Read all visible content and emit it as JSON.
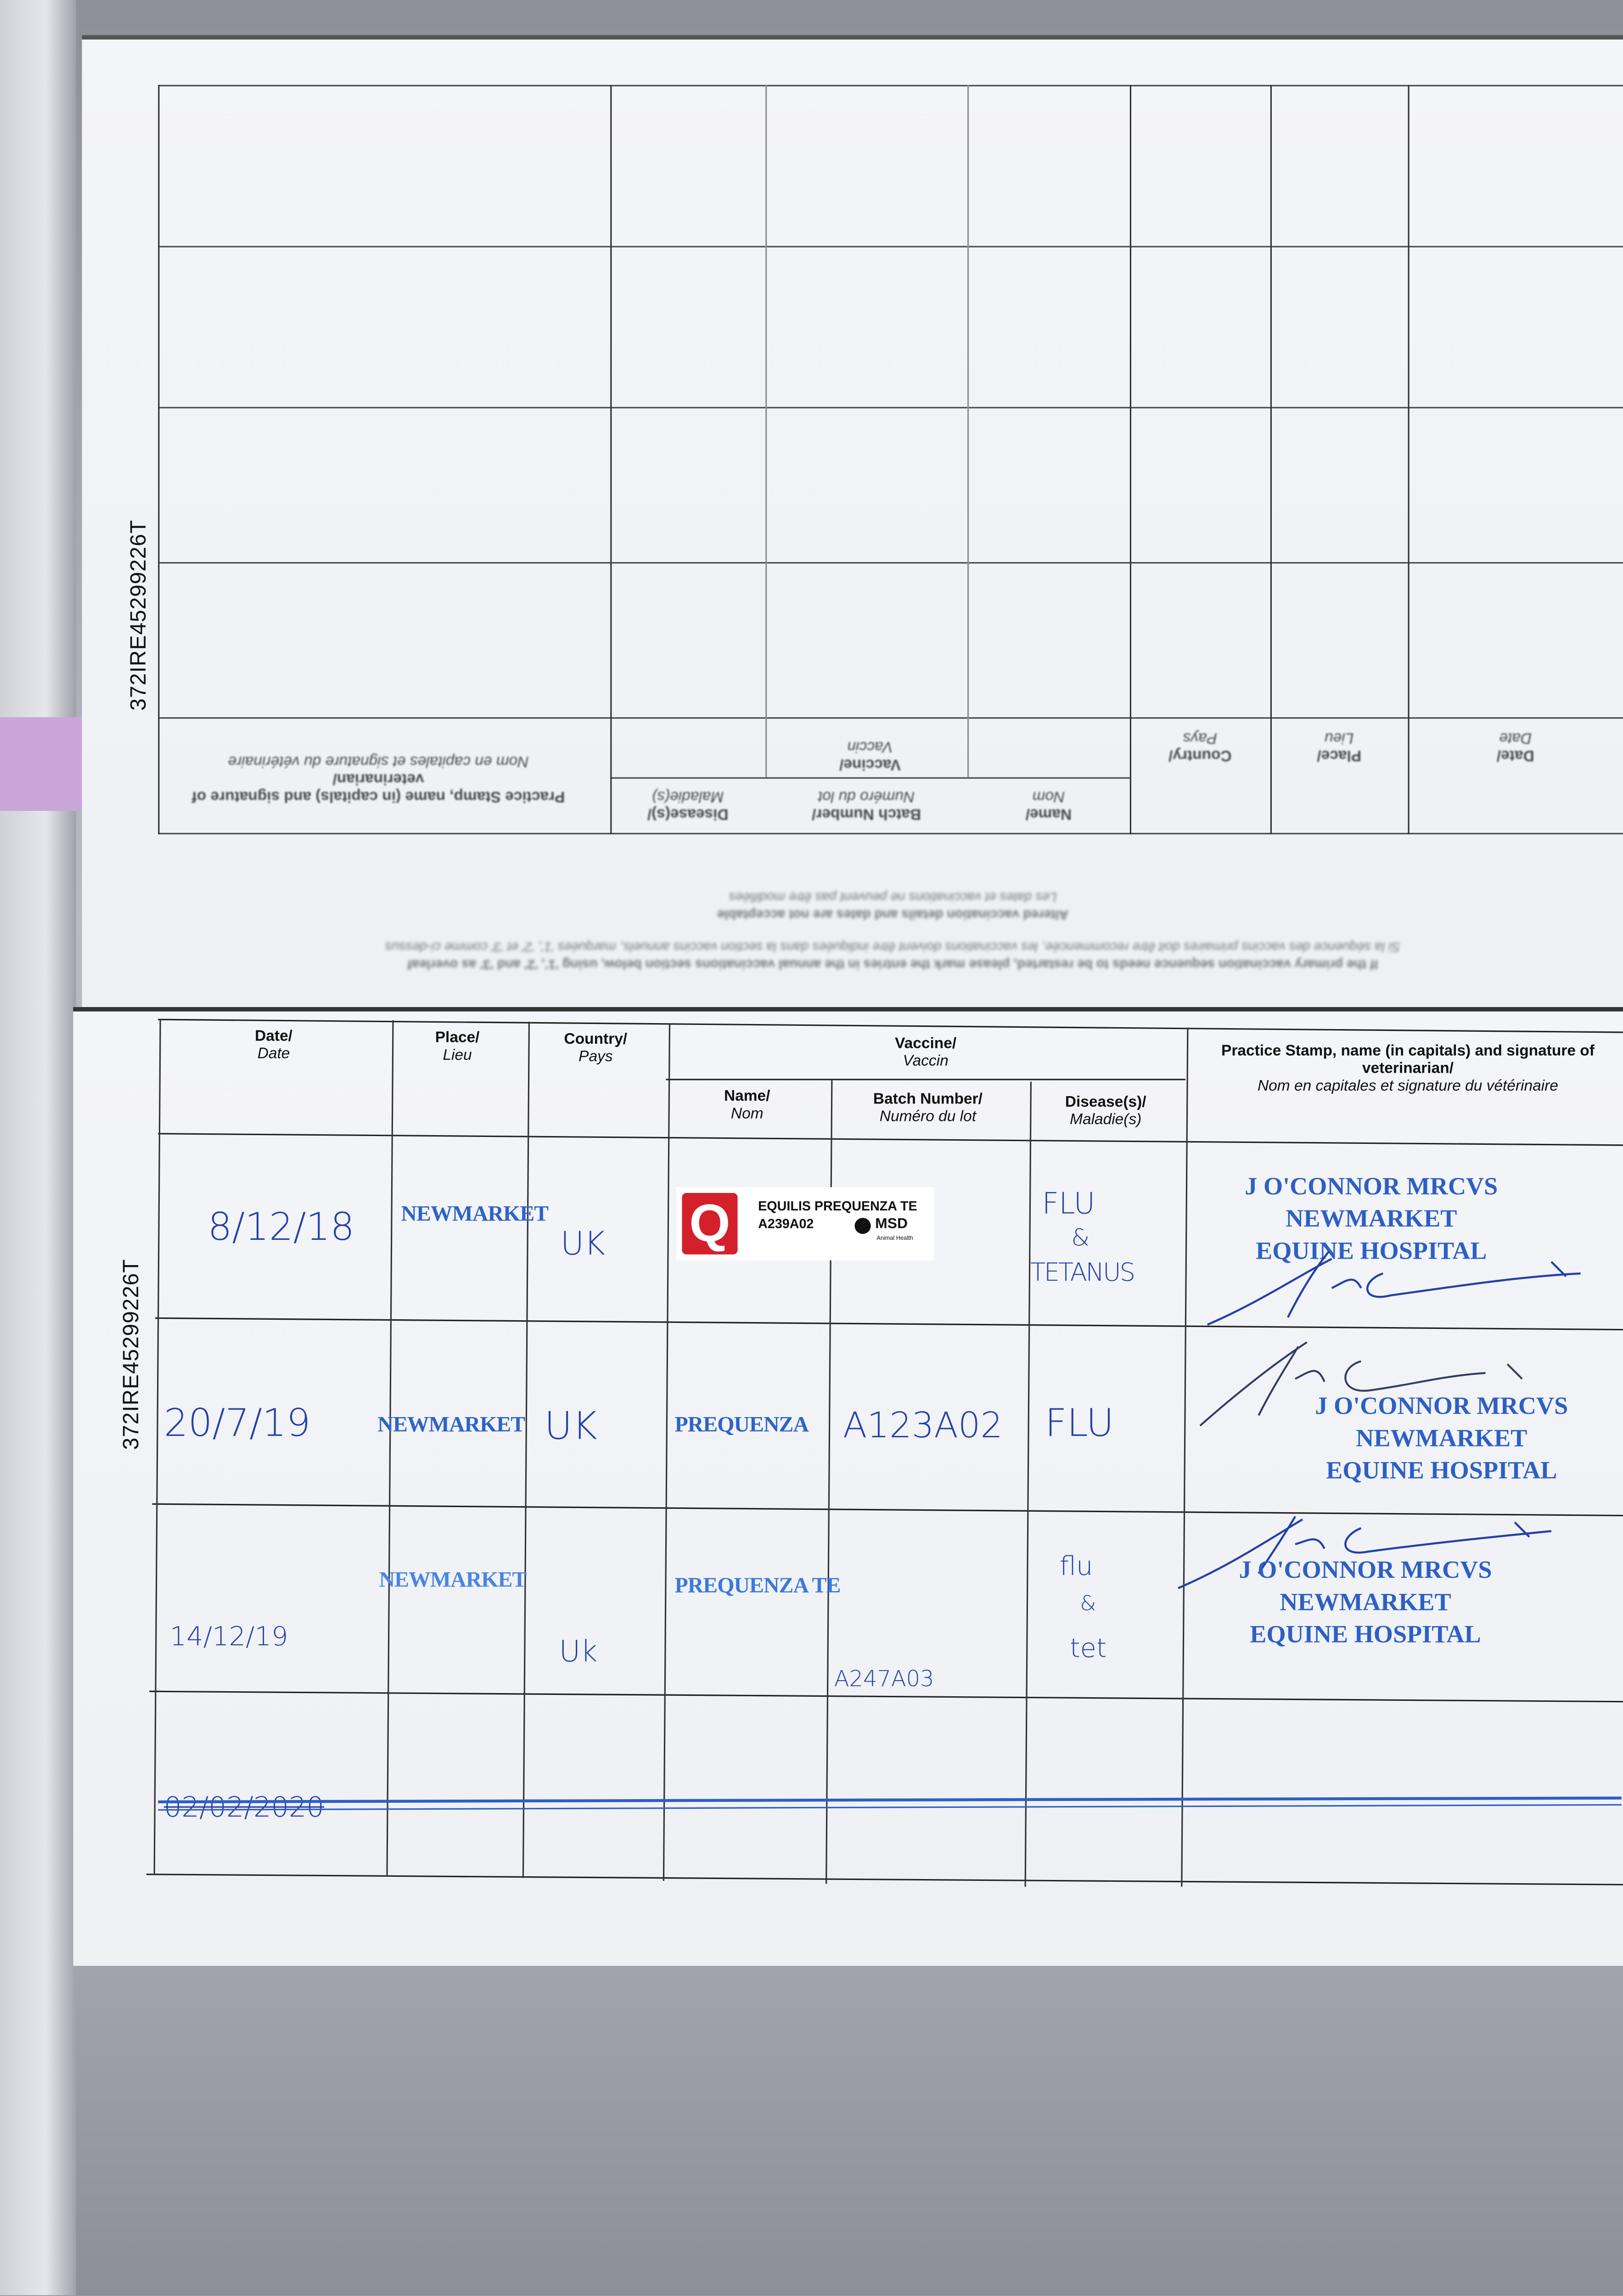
{
  "passport_id": "372IRE45299226T",
  "table_headers": {
    "date": "Date/",
    "date_fr": "Date",
    "place": "Place/",
    "place_fr": "Lieu",
    "country": "Country/",
    "country_fr": "Pays",
    "vaccine": "Vaccine/",
    "vaccine_fr": "Vaccin",
    "name": "Name/",
    "name_fr": "Nom",
    "batch": "Batch Number/",
    "batch_fr": "Numéro du lot",
    "disease": "Disease(s)/",
    "disease_fr": "Maladie(s)",
    "vet": "Practice Stamp, name (in capitals) and signature of veterinarian/",
    "vet_fr": "Nom en capitales et signature du vétérinaire"
  },
  "upper_page_notes": [
    "If the primary vaccination sequence needs to be restarted, please mark the entries in the annual vaccinations section below, using '1', '2' and '3' as overleaf",
    "Si la séquence des vaccins primaires doit être recommencée, les vaccinations doivent être indiquées dans la section vaccins annuels, marquées '1', '2' et '3' comme ci-dessus",
    "Altered vaccination details and dates are not acceptable",
    "Les dates et vaccinations ne peuvent pas être modifiées"
  ],
  "vaccinations": [
    {
      "date": "8/12/18",
      "place": "NEWMARKET",
      "country": "UK",
      "label": {
        "product": "EQUILIS PREQUENZA TE",
        "batch": "A239A02",
        "brand": "MSD",
        "brand_sub": "Animal Health",
        "logo_letter": "Q"
      },
      "disease_lines": [
        "FLU",
        "&",
        "TETANUS"
      ],
      "vet_stamp": [
        "J O'CONNOR MRCVS",
        "NEWMARKET",
        "EQUINE HOSPITAL"
      ]
    },
    {
      "date": "20/7/19",
      "place": "NEWMARKET",
      "country": "UK",
      "name": "PREQUENZA",
      "batch": "A123A02",
      "disease": "FLU",
      "vet_stamp": [
        "J O'CONNOR MRCVS",
        "NEWMARKET",
        "EQUINE HOSPITAL"
      ]
    },
    {
      "date": "14/12/19",
      "place": "NEWMARKET",
      "country": "Uk",
      "name": "PREQUENZA TE",
      "batch": "A247A03",
      "disease_lines": [
        "flu",
        "&",
        "tet"
      ],
      "vet_stamp": [
        "J O'CONNOR MRCVS",
        "NEWMARKET",
        "EQUINE HOSPITAL"
      ]
    },
    {
      "date": "02/02/2020",
      "struck_out": true
    }
  ],
  "colors": {
    "ink_blue": "#2440a8",
    "stamp_blue": "#2d63c9",
    "label_red": "#d4202a",
    "tab_pink": "#c9a6d8"
  }
}
